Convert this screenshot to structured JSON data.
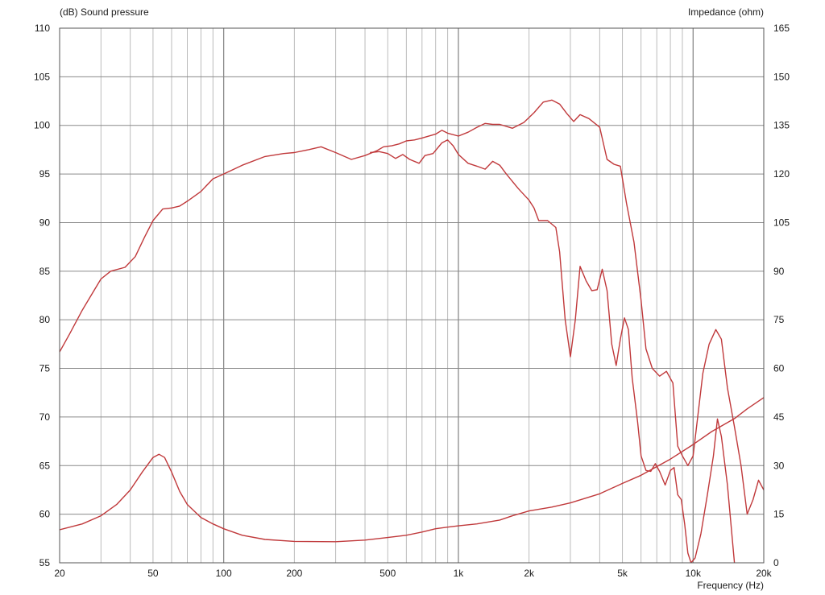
{
  "chart_data": {
    "type": "line",
    "left_axis_title": "(dB)  Sound pressure",
    "right_axis_title": "Impedance  (ohm)",
    "xlabel": "Frequency  (Hz)",
    "x_scale": "log",
    "xlim": [
      20,
      20000
    ],
    "ylim_left": [
      55,
      110
    ],
    "ylim_right": [
      0,
      165
    ],
    "grid": true,
    "legend": "none",
    "colors": {
      "curve": "#c0393b",
      "grid_major": "#8a8a8a",
      "grid_minor": "#b4b4b4",
      "frame": "#555555"
    },
    "x_tick_labels": [
      {
        "value": 20,
        "label": "20"
      },
      {
        "value": 50,
        "label": "50"
      },
      {
        "value": 100,
        "label": "100"
      },
      {
        "value": 200,
        "label": "200"
      },
      {
        "value": 500,
        "label": "500"
      },
      {
        "value": 1000,
        "label": "1k"
      },
      {
        "value": 2000,
        "label": "2k"
      },
      {
        "value": 5000,
        "label": "5k"
      },
      {
        "value": 10000,
        "label": "10k"
      },
      {
        "value": 20000,
        "label": "20k"
      }
    ],
    "y_left_ticks": [
      55,
      60,
      65,
      70,
      75,
      80,
      85,
      90,
      95,
      100,
      105,
      110
    ],
    "y_right_ticks": [
      0,
      15,
      30,
      45,
      60,
      75,
      90,
      105,
      120,
      135,
      150,
      165
    ],
    "series": [
      {
        "axis": "left",
        "points": [
          [
            20,
            76.7
          ],
          [
            22,
            78.5
          ],
          [
            25,
            81
          ],
          [
            28,
            83
          ],
          [
            30,
            84.2
          ],
          [
            33,
            85
          ],
          [
            38,
            85.4
          ],
          [
            42,
            86.5
          ],
          [
            46,
            88.5
          ],
          [
            50,
            90.2
          ],
          [
            55,
            91.4
          ],
          [
            60,
            91.5
          ],
          [
            65,
            91.7
          ],
          [
            70,
            92.2
          ],
          [
            80,
            93.2
          ],
          [
            90,
            94.5
          ],
          [
            100,
            95
          ],
          [
            120,
            95.9
          ],
          [
            150,
            96.8
          ],
          [
            180,
            97.1
          ],
          [
            200,
            97.2
          ],
          [
            230,
            97.5
          ],
          [
            260,
            97.8
          ],
          [
            300,
            97.2
          ],
          [
            350,
            96.5
          ],
          [
            400,
            96.9
          ],
          [
            450,
            97.4
          ],
          [
            480,
            97.8
          ],
          [
            520,
            97.9
          ],
          [
            560,
            98.1
          ],
          [
            600,
            98.4
          ],
          [
            650,
            98.5
          ],
          [
            700,
            98.7
          ],
          [
            800,
            99.1
          ],
          [
            850,
            99.5
          ],
          [
            900,
            99.2
          ],
          [
            1000,
            98.9
          ],
          [
            1100,
            99.3
          ],
          [
            1200,
            99.8
          ],
          [
            1300,
            100.2
          ],
          [
            1400,
            100.1
          ],
          [
            1500,
            100.1
          ],
          [
            1700,
            99.7
          ],
          [
            1900,
            100.3
          ],
          [
            2100,
            101.3
          ],
          [
            2300,
            102.4
          ],
          [
            2500,
            102.6
          ],
          [
            2700,
            102.2
          ],
          [
            2900,
            101.2
          ],
          [
            3100,
            100.4
          ],
          [
            3300,
            101.1
          ],
          [
            3600,
            100.7
          ],
          [
            4000,
            99.8
          ],
          [
            4300,
            96.5
          ],
          [
            4600,
            96
          ],
          [
            4900,
            95.8
          ],
          [
            5200,
            92
          ],
          [
            5600,
            88
          ],
          [
            6000,
            82
          ],
          [
            6300,
            77
          ],
          [
            6700,
            75
          ],
          [
            7200,
            74.2
          ],
          [
            7700,
            74.7
          ],
          [
            8200,
            73.5
          ],
          [
            8600,
            67
          ],
          [
            9000,
            66
          ],
          [
            9500,
            65
          ],
          [
            10000,
            66
          ],
          [
            11000,
            74.5
          ],
          [
            11700,
            77.5
          ],
          [
            12500,
            79
          ],
          [
            13200,
            78
          ],
          [
            14000,
            73
          ],
          [
            15000,
            69
          ],
          [
            16000,
            65
          ],
          [
            17000,
            60
          ],
          [
            18000,
            61.5
          ],
          [
            19000,
            63.5
          ],
          [
            20000,
            62.5
          ]
        ]
      },
      {
        "axis": "left",
        "points": [
          [
            420,
            97.2
          ],
          [
            460,
            97.3
          ],
          [
            500,
            97.1
          ],
          [
            540,
            96.6
          ],
          [
            580,
            97
          ],
          [
            620,
            96.5
          ],
          [
            680,
            96.1
          ],
          [
            720,
            96.9
          ],
          [
            780,
            97.1
          ],
          [
            850,
            98.2
          ],
          [
            900,
            98.5
          ],
          [
            950,
            97.9
          ],
          [
            1000,
            97
          ],
          [
            1100,
            96.1
          ],
          [
            1200,
            95.8
          ],
          [
            1300,
            95.5
          ],
          [
            1400,
            96.3
          ],
          [
            1500,
            95.9
          ],
          [
            1600,
            95
          ],
          [
            1800,
            93.5
          ],
          [
            2000,
            92.3
          ],
          [
            2100,
            91.5
          ],
          [
            2200,
            90.2
          ],
          [
            2400,
            90.2
          ],
          [
            2600,
            89.5
          ],
          [
            2700,
            87
          ],
          [
            2850,
            80
          ],
          [
            3000,
            76.2
          ],
          [
            3150,
            80
          ],
          [
            3300,
            85.5
          ],
          [
            3500,
            84
          ],
          [
            3700,
            83
          ],
          [
            3900,
            83.1
          ],
          [
            4100,
            85.2
          ],
          [
            4300,
            83
          ],
          [
            4500,
            77.5
          ],
          [
            4700,
            75.3
          ],
          [
            4900,
            78
          ],
          [
            5100,
            80.2
          ],
          [
            5300,
            79
          ],
          [
            5500,
            74
          ],
          [
            5800,
            69.5
          ],
          [
            6000,
            66
          ],
          [
            6300,
            64.5
          ],
          [
            6600,
            64.4
          ],
          [
            6900,
            65.2
          ],
          [
            7200,
            64.4
          ],
          [
            7600,
            63
          ],
          [
            8000,
            64.5
          ],
          [
            8300,
            64.8
          ],
          [
            8600,
            62
          ],
          [
            8900,
            61.5
          ],
          [
            9200,
            59
          ],
          [
            9500,
            56
          ],
          [
            9800,
            55
          ],
          [
            10200,
            55.5
          ],
          [
            10800,
            58
          ],
          [
            11500,
            62
          ],
          [
            12200,
            66
          ],
          [
            12700,
            69.8
          ],
          [
            13200,
            68
          ],
          [
            14000,
            63
          ],
          [
            15000,
            55
          ]
        ]
      },
      {
        "axis": "right",
        "points": [
          [
            20,
            10.2
          ],
          [
            25,
            12
          ],
          [
            30,
            14.5
          ],
          [
            35,
            18
          ],
          [
            40,
            22.5
          ],
          [
            45,
            28
          ],
          [
            50,
            32.5
          ],
          [
            53,
            33.5
          ],
          [
            56,
            32.5
          ],
          [
            60,
            28
          ],
          [
            65,
            22
          ],
          [
            70,
            18
          ],
          [
            80,
            14
          ],
          [
            90,
            12
          ],
          [
            100,
            10.5
          ],
          [
            120,
            8.5
          ],
          [
            150,
            7.2
          ],
          [
            200,
            6.6
          ],
          [
            300,
            6.5
          ],
          [
            400,
            7
          ],
          [
            500,
            7.8
          ],
          [
            600,
            8.5
          ],
          [
            700,
            9.5
          ],
          [
            800,
            10.5
          ],
          [
            900,
            11
          ],
          [
            1000,
            11.4
          ],
          [
            1200,
            12
          ],
          [
            1500,
            13.2
          ],
          [
            1700,
            14.5
          ],
          [
            2000,
            16
          ],
          [
            2500,
            17.2
          ],
          [
            3000,
            18.5
          ],
          [
            4000,
            21.3
          ],
          [
            5000,
            24.5
          ],
          [
            6000,
            27
          ],
          [
            8000,
            32
          ],
          [
            10000,
            36.5
          ],
          [
            12000,
            40.5
          ],
          [
            15000,
            44.5
          ],
          [
            17000,
            47.5
          ],
          [
            20000,
            51
          ]
        ]
      }
    ]
  }
}
